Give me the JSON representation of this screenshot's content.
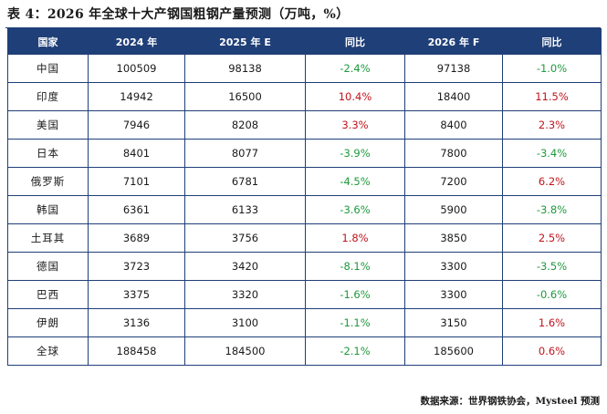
{
  "title": "表 4：2026 年全球十大产钢国粗钢产量预测（万吨，%）",
  "table": {
    "headers": [
      "国家",
      "2024 年",
      "2025 年 E",
      "同比",
      "2026 年 F",
      "同比"
    ],
    "rows": [
      {
        "country": "中国",
        "y2024": "100509",
        "y2025e": "98138",
        "yoy2025": "-2.4%",
        "y2026f": "97138",
        "yoy2026": "-1.0%"
      },
      {
        "country": "印度",
        "y2024": "14942",
        "y2025e": "16500",
        "yoy2025": "10.4%",
        "y2026f": "18400",
        "yoy2026": "11.5%"
      },
      {
        "country": "美国",
        "y2024": "7946",
        "y2025e": "8208",
        "yoy2025": "3.3%",
        "y2026f": "8400",
        "yoy2026": "2.3%"
      },
      {
        "country": "日本",
        "y2024": "8401",
        "y2025e": "8077",
        "yoy2025": "-3.9%",
        "y2026f": "7800",
        "yoy2026": "-3.4%"
      },
      {
        "country": "俄罗斯",
        "y2024": "7101",
        "y2025e": "6781",
        "yoy2025": "-4.5%",
        "y2026f": "7200",
        "yoy2026": "6.2%"
      },
      {
        "country": "韩国",
        "y2024": "6361",
        "y2025e": "6133",
        "yoy2025": "-3.6%",
        "y2026f": "5900",
        "yoy2026": "-3.8%"
      },
      {
        "country": "土耳其",
        "y2024": "3689",
        "y2025e": "3756",
        "yoy2025": "1.8%",
        "y2026f": "3850",
        "yoy2026": "2.5%"
      },
      {
        "country": "德国",
        "y2024": "3723",
        "y2025e": "3420",
        "yoy2025": "-8.1%",
        "y2026f": "3300",
        "yoy2026": "-3.5%"
      },
      {
        "country": "巴西",
        "y2024": "3375",
        "y2025e": "3320",
        "yoy2025": "-1.6%",
        "y2026f": "3300",
        "yoy2026": "-0.6%"
      },
      {
        "country": "伊朗",
        "y2024": "3136",
        "y2025e": "3100",
        "yoy2025": "-1.1%",
        "y2026f": "3150",
        "yoy2026": "1.6%"
      },
      {
        "country": "全球",
        "y2024": "188458",
        "y2025e": "184500",
        "yoy2025": "-2.1%",
        "y2026f": "185600",
        "yoy2026": "0.6%"
      }
    ]
  },
  "source": "数据来源：世界钢铁协会，Mysteel 预测",
  "colors": {
    "header_bg": "#1f3f78",
    "header_text": "#ffffff",
    "border": "#1f3f78",
    "positive": "#c0141c",
    "negative": "#1e9a3c"
  }
}
